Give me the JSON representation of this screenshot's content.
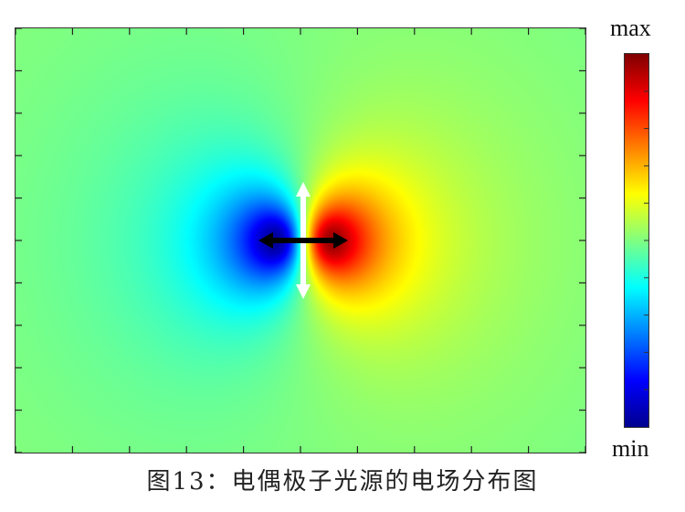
{
  "chart_data": {
    "type": "heatmap",
    "title": "",
    "colormap": "jet",
    "colorbar": {
      "max_label": "max",
      "min_label": "min"
    },
    "x_ticks": 11,
    "y_ticks": 11,
    "tick_labels_shown": false,
    "field": "dipole electric field (positive lobe right, negative lobe left)",
    "arrows": [
      {
        "name": "dipole-axis",
        "direction": "horizontal",
        "color": "#000000"
      },
      {
        "name": "polarization",
        "direction": "vertical",
        "color": "#ffffff"
      }
    ]
  },
  "caption": "图13：电偶极子光源的电场分布图"
}
